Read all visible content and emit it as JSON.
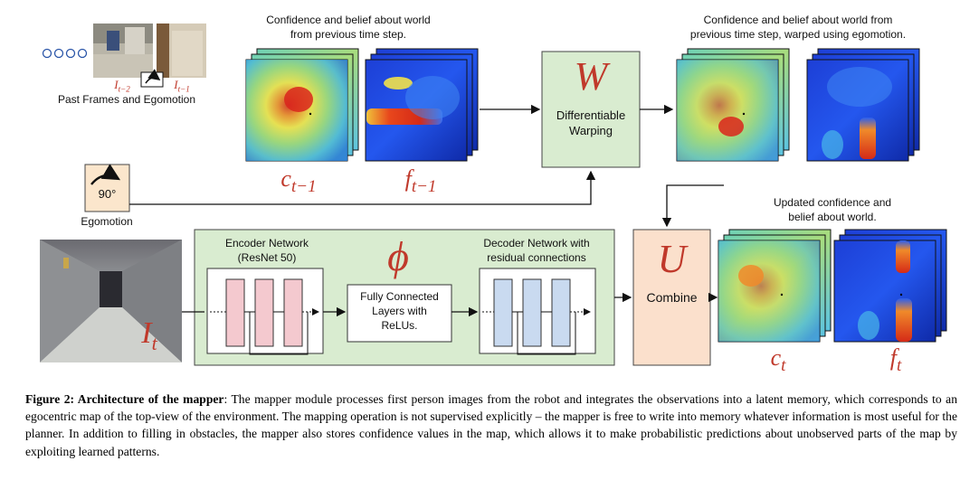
{
  "past_frames": {
    "label": "Past Frames and Egomotion",
    "sub_t2": "I",
    "sub_t2_idx": "t−2",
    "sub_t1": "I",
    "sub_t1_idx": "t−1"
  },
  "egomotion": {
    "value": "90°",
    "label": "Egomotion"
  },
  "prev_maps": {
    "title_line1": "Confidence and belief about world",
    "title_line2": "from previous time step.",
    "c_label": "c",
    "c_idx": "t−1",
    "f_label": "f",
    "f_idx": "t−1"
  },
  "warp": {
    "symbol": "W",
    "line1": "Differentiable",
    "line2": "Warping"
  },
  "warped_maps": {
    "title_line1": "Confidence and belief about world from",
    "title_line2": "previous time step, warped using egomotion."
  },
  "updated_maps": {
    "title_line1": "Updated confidence and",
    "title_line2": "belief about world.",
    "c_label": "c",
    "c_idx": "t",
    "f_label": "f",
    "f_idx": "t"
  },
  "combine": {
    "symbol": "U",
    "label": "Combine"
  },
  "phi": {
    "symbol": "ϕ",
    "encoder_line1": "Encoder Network",
    "encoder_line2": "(ResNet 50)",
    "decoder_line1": "Decoder Network with",
    "decoder_line2": "residual connections",
    "fc_line1": "Fully Connected",
    "fc_line2": "Layers with",
    "fc_line3": "ReLUs."
  },
  "current_image": {
    "label": "I",
    "idx": "t"
  },
  "caption": {
    "bold": "Figure 2: Architecture of the mapper",
    "text": ": The mapper module processes first person images from the robot and integrates the observations into a latent memory, which corresponds to an egocentric map of the top-view of the environment. The mapping operation is not supervised explicitly – the mapper is free to write into memory whatever information is most useful for the planner. In addition to filling in obstacles, the mapper also stores confidence values in the map, which allows it to make probabilistic predictions about unobserved parts of the map by exploiting learned patterns."
  },
  "colors": {
    "green_fill": "#d9ecd0",
    "orange_fill": "#fbe0cc",
    "pink_fill": "#f4c9cf",
    "blue_fill": "#c9daf0",
    "math_red": "#c0392b"
  }
}
